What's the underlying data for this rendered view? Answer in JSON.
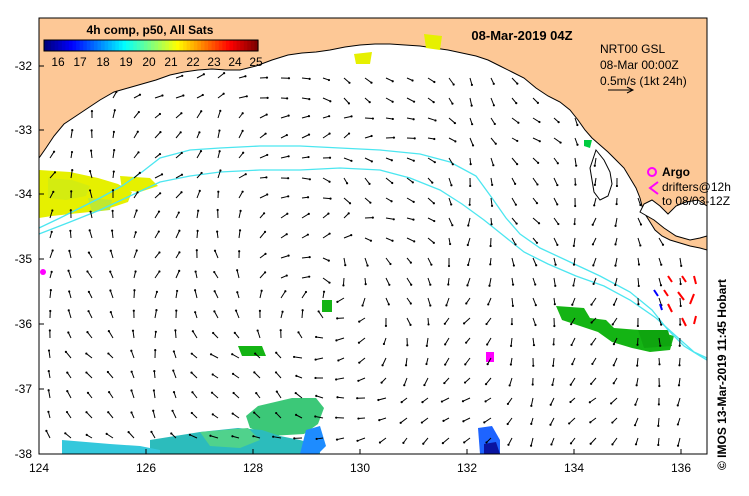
{
  "header": {
    "date_label": "08-Mar-2019 04Z",
    "colorbar_title": "4h comp, p50, All Sats",
    "colorbar_ticks": [
      "16",
      "17",
      "18",
      "19",
      "20",
      "21",
      "22",
      "23",
      "24",
      "25"
    ],
    "colorbar_colors": [
      "#00007f",
      "#0000ff",
      "#007fff",
      "#00ffff",
      "#7fff7f",
      "#ffff00",
      "#ff7f00",
      "#ff0000",
      "#7f0000"
    ]
  },
  "legend": {
    "model_line1": "NRT00 GSL",
    "model_line2": "08-Mar 00:00Z",
    "model_line3": "0.5m/s (1kt 24h)",
    "argo_label": "Argo",
    "drifters_line1": "drifters@12h",
    "drifters_line2": "to 08/03-12Z"
  },
  "credit": "© IMOS 13-Mar-2019 11:45 Hobart",
  "axes": {
    "x_ticks": [
      "124",
      "126",
      "128",
      "130",
      "132",
      "134",
      "136"
    ],
    "y_ticks": [
      "-32",
      "-33",
      "-34",
      "-35",
      "-36",
      "-37",
      "-38"
    ],
    "lon_range": [
      124,
      136.5
    ],
    "lat_range": [
      -38.15,
      -31.35
    ]
  },
  "colors": {
    "land": "#fdc896",
    "contour": "#4ce6f0",
    "argo": "#ff00ff",
    "drifter_red": "#ff0000",
    "drifter_blue": "#0000ff"
  }
}
